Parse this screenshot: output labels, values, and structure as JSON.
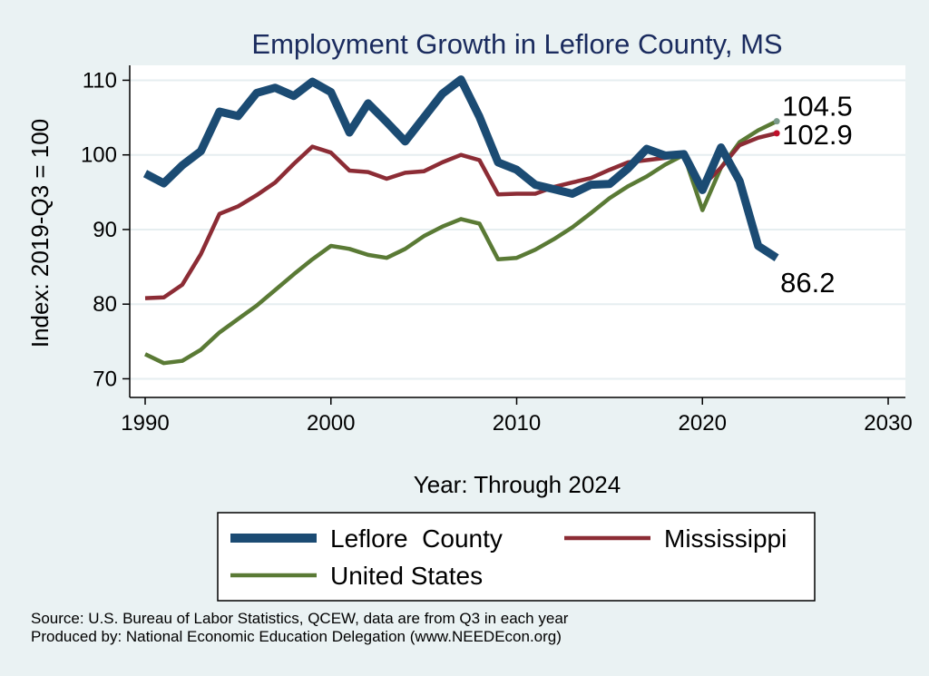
{
  "chart_data": {
    "type": "line",
    "title": "Employment Growth in Leflore County, MS",
    "xlabel": "Year: Through 2024",
    "ylabel": "Index: 2019-Q3 = 100",
    "xlim": [
      1990,
      2030
    ],
    "ylim": [
      67.5,
      112
    ],
    "xticks": [
      1990,
      2000,
      2010,
      2020,
      2030
    ],
    "yticks": [
      70,
      80,
      90,
      100,
      110
    ],
    "grid": true,
    "x": [
      1990,
      1991,
      1992,
      1993,
      1994,
      1995,
      1996,
      1997,
      1998,
      1999,
      2000,
      2001,
      2002,
      2003,
      2004,
      2005,
      2006,
      2007,
      2008,
      2009,
      2010,
      2011,
      2012,
      2013,
      2014,
      2015,
      2016,
      2017,
      2018,
      2019,
      2020,
      2021,
      2022,
      2023,
      2024
    ],
    "series": [
      {
        "name": "Leflore  County",
        "color": "#1b4b73",
        "values": [
          97.5,
          96.2,
          98.6,
          100.5,
          105.8,
          105.2,
          108.3,
          109.0,
          107.9,
          109.8,
          108.4,
          103.0,
          106.9,
          104.4,
          101.8,
          105.0,
          108.2,
          110.1,
          105.1,
          99.0,
          98.0,
          96.0,
          95.4,
          94.8,
          96.0,
          96.1,
          98.2,
          100.8,
          99.9,
          100.1,
          95.3,
          101.0,
          96.5,
          87.8,
          86.2
        ],
        "end_label": "86.2"
      },
      {
        "name": "Mississippi",
        "color": "#8c2c35",
        "values": [
          80.8,
          80.9,
          82.6,
          86.7,
          92.1,
          93.1,
          94.6,
          96.3,
          98.8,
          101.1,
          100.3,
          97.9,
          97.7,
          96.8,
          97.6,
          97.8,
          99.0,
          100.0,
          99.3,
          94.7,
          94.8,
          94.8,
          95.7,
          96.3,
          96.9,
          98.0,
          99.0,
          99.3,
          99.6,
          100.0,
          95.8,
          98.3,
          101.3,
          102.3,
          102.9
        ],
        "end_label": "102.9"
      },
      {
        "name": "United States",
        "color": "#5a7a35",
        "values": [
          73.3,
          72.1,
          72.4,
          73.9,
          76.2,
          78.0,
          79.8,
          81.9,
          84.0,
          86.0,
          87.8,
          87.4,
          86.6,
          86.2,
          87.4,
          89.1,
          90.4,
          91.4,
          90.8,
          86.0,
          86.2,
          87.3,
          88.7,
          90.3,
          92.2,
          94.2,
          95.8,
          97.1,
          98.7,
          100.0,
          92.6,
          98.3,
          101.7,
          103.3,
          104.5
        ],
        "end_label": "104.5"
      }
    ],
    "legend": {
      "position": "bottom",
      "entries": [
        "Leflore  County",
        "Mississippi",
        "United States"
      ]
    }
  },
  "source": {
    "line1": "Source: U.S. Bureau of Labor Statistics, QCEW, data are from Q3 in each year",
    "line2": "Produced by: National Economic Education Delegation (www.NEEDEcon.org)"
  }
}
